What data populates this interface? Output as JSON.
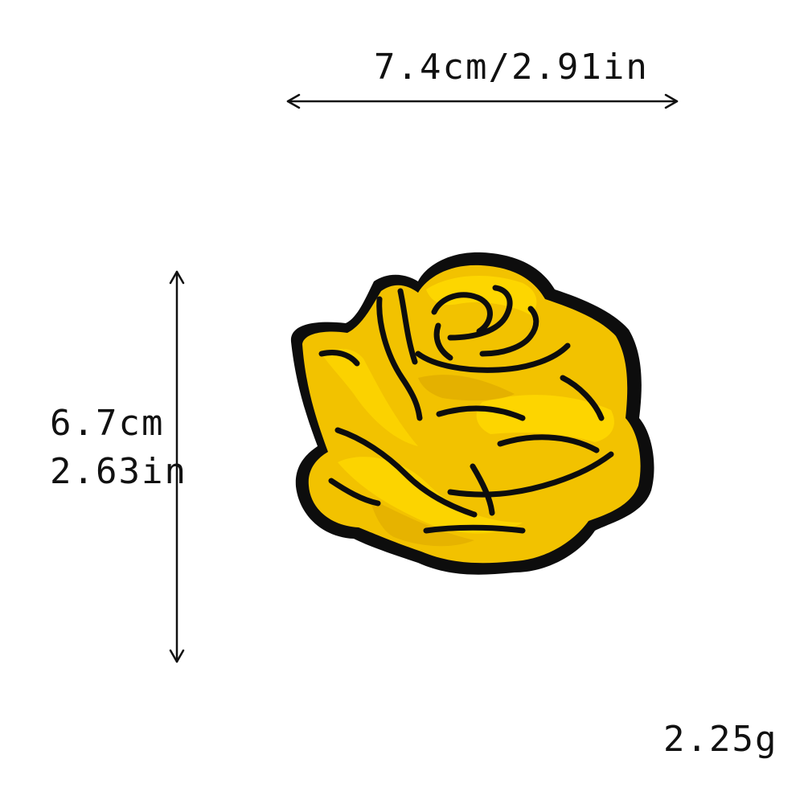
{
  "dimensions": {
    "width_label": "7.4cm/2.91in",
    "height_label_cm": "6.7cm",
    "height_label_in": "2.63in",
    "weight_label": "2.25g"
  },
  "product": {
    "icon": "yellow-rose-embroidered-patch",
    "colors": {
      "petal": "#f2c200",
      "petal_light": "#ffd900",
      "petal_shadow": "#d9a400",
      "outline": "#0d0d0d",
      "arrow": "#111111",
      "background": "#ffffff"
    }
  }
}
